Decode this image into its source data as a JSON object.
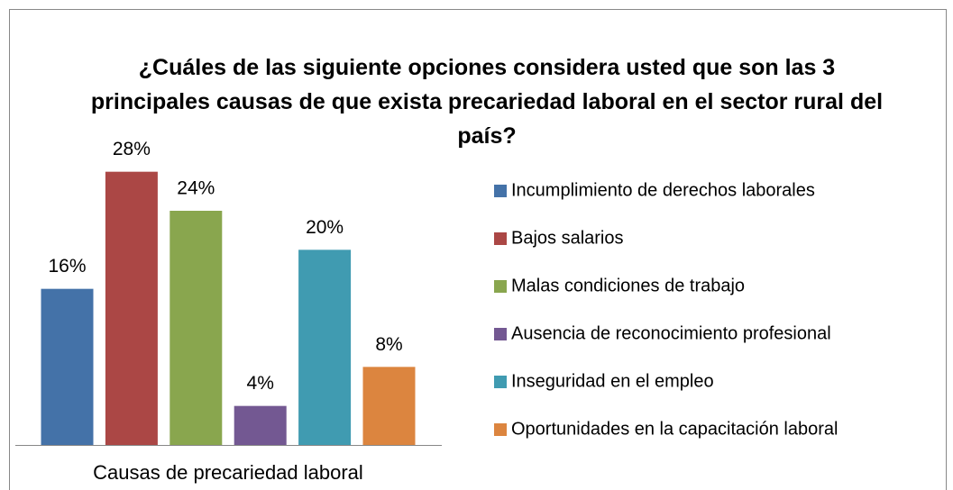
{
  "chart_data": {
    "type": "bar",
    "title": "¿Cuáles de las siguiente opciones considera usted que son las 3 principales causas de que exista precariedad laboral en el sector rural del país?",
    "categories": [
      "Causas de precariedad laboral"
    ],
    "ylim": [
      0,
      30
    ],
    "legend": "right",
    "series": [
      {
        "name": "Incumplimiento de derechos laborales",
        "color": "#4472a8",
        "values": [
          16
        ],
        "value_labels": [
          "16%"
        ]
      },
      {
        "name": "Bajos salarios",
        "color": "#ab4745",
        "values": [
          28
        ],
        "value_labels": [
          "28%"
        ]
      },
      {
        "name": "Malas condiciones de trabajo",
        "color": "#89a64e",
        "values": [
          24
        ],
        "value_labels": [
          "24%"
        ]
      },
      {
        "name": "Ausencia de reconocimiento profesional",
        "color": "#735892",
        "values": [
          4
        ],
        "value_labels": [
          "4%"
        ]
      },
      {
        "name": "Inseguridad en el empleo",
        "color": "#409bb1",
        "values": [
          20
        ],
        "value_labels": [
          "20%"
        ]
      },
      {
        "name": "Oportunidades en la capacitación laboral",
        "color": "#dc853f",
        "values": [
          8
        ],
        "value_labels": [
          "8%"
        ]
      }
    ]
  }
}
